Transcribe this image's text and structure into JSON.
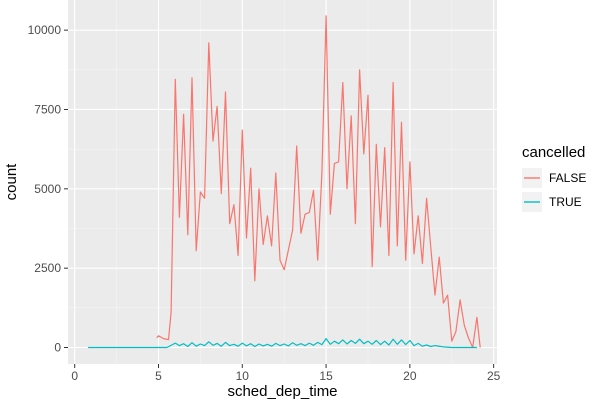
{
  "chart_data": {
    "type": "line",
    "title": "",
    "xlabel": "sched_dep_time",
    "ylabel": "count",
    "xlim": [
      -0.4,
      25.2
    ],
    "ylim": [
      -520,
      10950
    ],
    "xticks": [
      0,
      5,
      10,
      15,
      20,
      25
    ],
    "xtick_labels": [
      "0",
      "5",
      "10",
      "15",
      "20",
      "25"
    ],
    "yticks": [
      0,
      2500,
      5000,
      7500,
      10000
    ],
    "ytick_labels": [
      "0",
      "2500",
      "5000",
      "7500",
      "10000"
    ],
    "grid": true,
    "legend": {
      "title": "cancelled",
      "position": "right"
    },
    "colors": {
      "panel_bg": "#ebebeb",
      "grid_major": "#ffffff",
      "grid_minor": "#f5f5f5",
      "tick": "#333333"
    },
    "series": [
      {
        "name": "FALSE",
        "color": "#F8766D",
        "points": [
          [
            4.9,
            310
          ],
          [
            5.0,
            370
          ],
          [
            5.3,
            280
          ],
          [
            5.6,
            250
          ],
          [
            5.75,
            1100
          ],
          [
            6.0,
            8450
          ],
          [
            6.25,
            4100
          ],
          [
            6.5,
            7350
          ],
          [
            6.75,
            3550
          ],
          [
            7.0,
            8500
          ],
          [
            7.25,
            3050
          ],
          [
            7.5,
            4900
          ],
          [
            7.75,
            4700
          ],
          [
            8.0,
            9600
          ],
          [
            8.25,
            6500
          ],
          [
            8.5,
            7600
          ],
          [
            8.75,
            4850
          ],
          [
            9.0,
            8050
          ],
          [
            9.25,
            3900
          ],
          [
            9.5,
            4500
          ],
          [
            9.75,
            2900
          ],
          [
            10.0,
            6850
          ],
          [
            10.25,
            3450
          ],
          [
            10.5,
            5650
          ],
          [
            10.75,
            2100
          ],
          [
            11.0,
            5000
          ],
          [
            11.25,
            3250
          ],
          [
            11.5,
            4150
          ],
          [
            11.75,
            3200
          ],
          [
            12.0,
            5500
          ],
          [
            12.25,
            2750
          ],
          [
            12.5,
            2450
          ],
          [
            13.0,
            3700
          ],
          [
            13.25,
            6350
          ],
          [
            13.5,
            3600
          ],
          [
            13.75,
            4200
          ],
          [
            14.0,
            4250
          ],
          [
            14.25,
            4950
          ],
          [
            14.5,
            2750
          ],
          [
            14.75,
            5500
          ],
          [
            15.0,
            10450
          ],
          [
            15.25,
            4200
          ],
          [
            15.5,
            5800
          ],
          [
            15.75,
            5850
          ],
          [
            16.0,
            8350
          ],
          [
            16.25,
            5000
          ],
          [
            16.5,
            7300
          ],
          [
            16.75,
            3900
          ],
          [
            17.0,
            8750
          ],
          [
            17.25,
            6100
          ],
          [
            17.5,
            7950
          ],
          [
            17.75,
            2550
          ],
          [
            18.0,
            6400
          ],
          [
            18.25,
            3800
          ],
          [
            18.5,
            6300
          ],
          [
            18.75,
            2900
          ],
          [
            19.0,
            8350
          ],
          [
            19.25,
            3200
          ],
          [
            19.5,
            7100
          ],
          [
            19.75,
            2750
          ],
          [
            20.0,
            5850
          ],
          [
            20.25,
            2950
          ],
          [
            20.5,
            4150
          ],
          [
            20.75,
            2650
          ],
          [
            21.0,
            4700
          ],
          [
            21.25,
            3150
          ],
          [
            21.5,
            1650
          ],
          [
            21.75,
            2850
          ],
          [
            22.0,
            1400
          ],
          [
            22.25,
            1650
          ],
          [
            22.5,
            200
          ],
          [
            22.75,
            500
          ],
          [
            23.0,
            1500
          ],
          [
            23.25,
            700
          ],
          [
            23.5,
            300
          ],
          [
            23.75,
            0
          ],
          [
            24.0,
            950
          ],
          [
            24.2,
            0
          ]
        ]
      },
      {
        "name": "TRUE",
        "color": "#00BFC4",
        "points": [
          [
            0.8,
            0
          ],
          [
            1.5,
            0
          ],
          [
            2.5,
            0
          ],
          [
            3.5,
            0
          ],
          [
            4.5,
            0
          ],
          [
            5.0,
            0
          ],
          [
            5.5,
            0
          ],
          [
            6.0,
            140
          ],
          [
            6.25,
            60
          ],
          [
            6.5,
            120
          ],
          [
            6.75,
            30
          ],
          [
            7.0,
            150
          ],
          [
            7.25,
            40
          ],
          [
            7.5,
            110
          ],
          [
            7.75,
            60
          ],
          [
            8.0,
            180
          ],
          [
            8.25,
            70
          ],
          [
            8.5,
            130
          ],
          [
            8.75,
            40
          ],
          [
            9.0,
            160
          ],
          [
            9.25,
            60
          ],
          [
            9.5,
            100
          ],
          [
            9.75,
            40
          ],
          [
            10.0,
            140
          ],
          [
            10.25,
            50
          ],
          [
            10.5,
            120
          ],
          [
            10.75,
            30
          ],
          [
            11.0,
            110
          ],
          [
            11.25,
            50
          ],
          [
            11.5,
            100
          ],
          [
            11.75,
            40
          ],
          [
            12.0,
            130
          ],
          [
            12.25,
            60
          ],
          [
            12.5,
            110
          ],
          [
            12.75,
            50
          ],
          [
            13.0,
            150
          ],
          [
            13.25,
            70
          ],
          [
            13.5,
            120
          ],
          [
            13.75,
            60
          ],
          [
            14.0,
            140
          ],
          [
            14.25,
            70
          ],
          [
            14.5,
            160
          ],
          [
            14.75,
            90
          ],
          [
            15.0,
            280
          ],
          [
            15.25,
            100
          ],
          [
            15.5,
            200
          ],
          [
            15.75,
            120
          ],
          [
            16.0,
            240
          ],
          [
            16.25,
            110
          ],
          [
            16.5,
            220
          ],
          [
            16.75,
            130
          ],
          [
            17.0,
            260
          ],
          [
            17.25,
            120
          ],
          [
            17.5,
            200
          ],
          [
            17.75,
            100
          ],
          [
            18.0,
            220
          ],
          [
            18.25,
            90
          ],
          [
            18.5,
            200
          ],
          [
            18.75,
            80
          ],
          [
            19.0,
            260
          ],
          [
            19.25,
            100
          ],
          [
            19.5,
            240
          ],
          [
            19.75,
            90
          ],
          [
            20.0,
            220
          ],
          [
            20.25,
            60
          ],
          [
            20.5,
            130
          ],
          [
            20.75,
            40
          ],
          [
            21.0,
            80
          ],
          [
            21.25,
            30
          ],
          [
            21.5,
            60
          ],
          [
            22.0,
            20
          ],
          [
            22.5,
            0
          ],
          [
            23.0,
            0
          ],
          [
            23.5,
            0
          ],
          [
            24.0,
            0
          ]
        ]
      }
    ]
  }
}
